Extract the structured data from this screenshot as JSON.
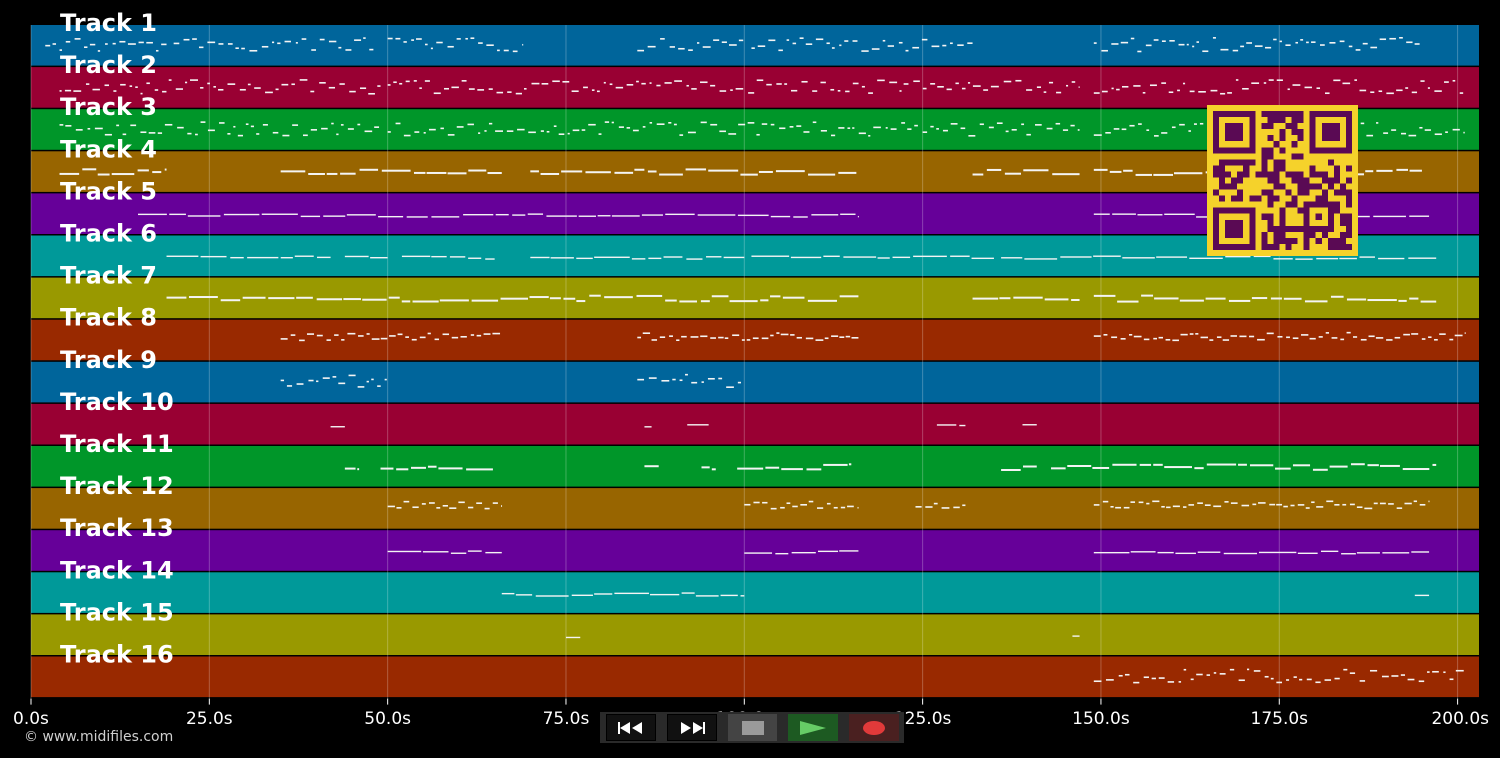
{
  "tracks": [
    {
      "label": "Track 1",
      "color": "#00659b"
    },
    {
      "label": "Track 2",
      "color": "#990033"
    },
    {
      "label": "Track 3",
      "color": "#009629"
    },
    {
      "label": "Track 4",
      "color": "#986500"
    },
    {
      "label": "Track 5",
      "color": "#660099"
    },
    {
      "label": "Track 6",
      "color": "#009999"
    },
    {
      "label": "Track 7",
      "color": "#999900"
    },
    {
      "label": "Track 8",
      "color": "#992900"
    },
    {
      "label": "Track 9",
      "color": "#00659b"
    },
    {
      "label": "Track 10",
      "color": "#990033"
    },
    {
      "label": "Track 11",
      "color": "#009629"
    },
    {
      "label": "Track 12",
      "color": "#986500"
    },
    {
      "label": "Track 13",
      "color": "#660099"
    },
    {
      "label": "Track 14",
      "color": "#009999"
    },
    {
      "label": "Track 15",
      "color": "#999900"
    },
    {
      "label": "Track 16",
      "color": "#992900"
    }
  ],
  "time_axis": {
    "max_seconds": 203,
    "ticks": [
      {
        "value": 0,
        "label": "0.0s"
      },
      {
        "value": 25,
        "label": "25.0s"
      },
      {
        "value": 50,
        "label": "50.0s"
      },
      {
        "value": 75,
        "label": "75.0s"
      },
      {
        "value": 100,
        "label": "100.0s"
      },
      {
        "value": 125,
        "label": "125.0s"
      },
      {
        "value": 150,
        "label": "150.0s"
      },
      {
        "value": 175,
        "label": "175.0s"
      },
      {
        "value": 200,
        "label": "200.0s"
      }
    ]
  },
  "note_regions": [
    {
      "track": 0,
      "segments": [
        [
          2,
          19
        ],
        [
          20,
          48
        ],
        [
          50,
          69
        ],
        [
          85,
          100
        ],
        [
          101,
          132
        ],
        [
          149,
          195
        ]
      ],
      "style": "dense"
    },
    {
      "track": 1,
      "segments": [
        [
          4,
          49
        ],
        [
          50,
          147
        ],
        [
          149,
          201
        ]
      ],
      "style": "dense"
    },
    {
      "track": 2,
      "segments": [
        [
          4,
          49
        ],
        [
          50,
          147
        ],
        [
          149,
          201
        ]
      ],
      "style": "dense"
    },
    {
      "track": 3,
      "segments": [
        [
          4,
          19
        ],
        [
          35,
          66
        ],
        [
          70,
          116
        ],
        [
          132,
          147
        ],
        [
          149,
          195
        ]
      ],
      "style": "thick"
    },
    {
      "track": 4,
      "segments": [
        [
          15,
          116
        ],
        [
          149,
          196
        ]
      ],
      "style": "line"
    },
    {
      "track": 5,
      "segments": [
        [
          19,
          42
        ],
        [
          44,
          50
        ],
        [
          52,
          65
        ],
        [
          70,
          100
        ],
        [
          101,
          135
        ],
        [
          136,
          197
        ]
      ],
      "style": "line"
    },
    {
      "track": 6,
      "segments": [
        [
          19,
          116
        ],
        [
          132,
          147
        ],
        [
          149,
          197
        ]
      ],
      "style": "thick"
    },
    {
      "track": 7,
      "segments": [
        [
          35,
          66
        ],
        [
          85,
          116
        ],
        [
          149,
          201
        ]
      ],
      "style": "squiggle"
    },
    {
      "track": 8,
      "segments": [
        [
          35,
          50
        ],
        [
          85,
          100
        ]
      ],
      "style": "dense"
    },
    {
      "track": 9,
      "segments": [
        [
          42,
          44
        ],
        [
          86,
          87
        ],
        [
          92,
          95
        ],
        [
          127,
          131
        ],
        [
          139,
          141
        ]
      ],
      "style": "line"
    },
    {
      "track": 10,
      "segments": [
        [
          44,
          46
        ],
        [
          49,
          65
        ],
        [
          86,
          88
        ],
        [
          94,
          96
        ],
        [
          99,
          115
        ],
        [
          136,
          141
        ],
        [
          143,
          197
        ]
      ],
      "style": "thick"
    },
    {
      "track": 11,
      "segments": [
        [
          50,
          66
        ],
        [
          100,
          116
        ],
        [
          124,
          131
        ],
        [
          149,
          196
        ]
      ],
      "style": "squiggle"
    },
    {
      "track": 12,
      "segments": [
        [
          50,
          66
        ],
        [
          100,
          116
        ],
        [
          149,
          196
        ]
      ],
      "style": "line"
    },
    {
      "track": 13,
      "segments": [
        [
          66,
          100
        ],
        [
          194,
          196
        ]
      ],
      "style": "line"
    },
    {
      "track": 14,
      "segments": [
        [
          75,
          77
        ],
        [
          146,
          147
        ]
      ],
      "style": "line"
    },
    {
      "track": 15,
      "segments": [
        [
          149,
          201
        ]
      ],
      "style": "dense"
    }
  ],
  "copyright": "© www.midifiles.com",
  "transport": {
    "rewind": "rewind-icon",
    "forward": "fast-forward-icon",
    "stop": "stop-icon",
    "play": "play-icon",
    "record": "record-icon"
  },
  "qr_colors": {
    "fg": "#5a0a54",
    "bg": "#f5d22b"
  }
}
